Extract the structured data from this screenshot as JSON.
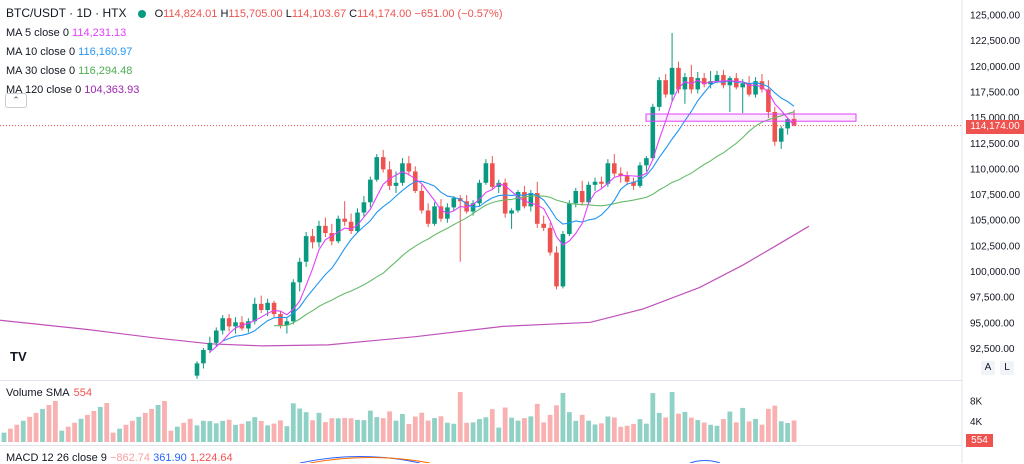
{
  "legend": {
    "symbol": "BTC/USDT · 1D · HTX",
    "o_label": "O",
    "o_value": "114,824.01",
    "h_label": "H",
    "h_value": "115,705.00",
    "l_label": "L",
    "l_value": "114,103.67",
    "c_label": "C",
    "c_value": "114,174.00",
    "change": "−651.00 (−0.57%)",
    "ma": [
      {
        "label": "MA 5 close 0",
        "value": "114,231.13",
        "color": "#e040fb"
      },
      {
        "label": "MA 10 close 0",
        "value": "116,160.97",
        "color": "#2196f3"
      },
      {
        "label": "MA 30 close 0",
        "value": "116,294.48",
        "color": "#4caf50"
      },
      {
        "label": "MA 120 close 0",
        "value": "104,363.93",
        "color": "#9c27b0"
      }
    ]
  },
  "collapse_icon": "chevron-up-icon",
  "logo_text": "TV",
  "axis_buttons": {
    "auto": "A",
    "log": "L"
  },
  "volume": {
    "label": "Volume SMA",
    "value": "554",
    "axis_ticks": [
      "8K",
      "4K"
    ],
    "last_tag": "554"
  },
  "macd": {
    "label": "MACD 12 26 close 9",
    "v1": "−862.74",
    "v2": "361.90",
    "v3": "1,224.64"
  },
  "last_price_tag": "114,174.00",
  "colors": {
    "up": "#089981",
    "down": "#ef5350",
    "ma5": "#e040fb",
    "ma10": "#2196f3",
    "ma30": "#66bb6a",
    "ma120": "#c252b9",
    "zone": "#e040fb"
  },
  "chart_data": {
    "type": "candlestick",
    "y_ticks": [
      "125,000.00",
      "122,500.00",
      "120,000.00",
      "117,500.00",
      "115,000.00",
      "112,500.00",
      "110,000.00",
      "107,500.00",
      "105,000.00",
      "102,500.00",
      "100,000.00",
      "97,500.00",
      "95,000.00",
      "92,500.00"
    ],
    "ylim": [
      90000,
      126000
    ],
    "candles": [
      [
        89800,
        91200,
        89500,
        91000
      ],
      [
        91000,
        92500,
        90500,
        92300
      ],
      [
        92300,
        93600,
        92000,
        93000
      ],
      [
        93000,
        94500,
        92600,
        94200
      ],
      [
        94200,
        95700,
        93800,
        95400
      ],
      [
        95400,
        95800,
        94100,
        94600
      ],
      [
        94600,
        95500,
        93900,
        95000
      ],
      [
        95000,
        95600,
        94200,
        94400
      ],
      [
        94400,
        95400,
        94000,
        95100
      ],
      [
        95100,
        97400,
        94800,
        96800
      ],
      [
        96800,
        97600,
        95900,
        96200
      ],
      [
        96200,
        97300,
        95600,
        96900
      ],
      [
        96900,
        97100,
        95500,
        95800
      ],
      [
        95800,
        96100,
        94400,
        94700
      ],
      [
        94700,
        95400,
        93900,
        95100
      ],
      [
        95100,
        99200,
        94800,
        98900
      ],
      [
        98900,
        101300,
        98000,
        100900
      ],
      [
        100900,
        103800,
        100400,
        103400
      ],
      [
        103400,
        104100,
        102200,
        102800
      ],
      [
        102800,
        104900,
        102300,
        104400
      ],
      [
        104400,
        105200,
        103300,
        103700
      ],
      [
        103700,
        104600,
        102500,
        102900
      ],
      [
        102900,
        105400,
        102700,
        105100
      ],
      [
        105100,
        106800,
        104400,
        104800
      ],
      [
        104800,
        105600,
        103600,
        103900
      ],
      [
        103900,
        106100,
        103700,
        105700
      ],
      [
        105700,
        107300,
        105300,
        106700
      ],
      [
        106700,
        109200,
        106200,
        108900
      ],
      [
        108900,
        111400,
        108700,
        111100
      ],
      [
        111100,
        111800,
        109600,
        109900
      ],
      [
        109900,
        110700,
        107900,
        108300
      ],
      [
        108300,
        109700,
        107600,
        108600
      ],
      [
        108600,
        111000,
        108300,
        110500
      ],
      [
        110500,
        111200,
        109300,
        109700
      ],
      [
        109700,
        110200,
        107600,
        107800
      ],
      [
        107800,
        108400,
        105600,
        105900
      ],
      [
        105900,
        106600,
        104300,
        104600
      ],
      [
        104600,
        106700,
        104400,
        106300
      ],
      [
        106300,
        107000,
        104800,
        105100
      ],
      [
        105100,
        106600,
        104700,
        106200
      ],
      [
        106200,
        107300,
        105900,
        107100
      ],
      [
        107100,
        107400,
        100900,
        106800
      ],
      [
        106800,
        107400,
        105600,
        105800
      ],
      [
        105800,
        106900,
        105400,
        106600
      ],
      [
        106600,
        108900,
        106300,
        108600
      ],
      [
        108600,
        110900,
        108400,
        110500
      ],
      [
        110500,
        111200,
        107900,
        108200
      ],
      [
        108200,
        108900,
        107600,
        108600
      ],
      [
        108600,
        109000,
        105200,
        105600
      ],
      [
        105600,
        106100,
        104100,
        105900
      ],
      [
        105900,
        107900,
        105700,
        107700
      ],
      [
        107700,
        108300,
        106100,
        106300
      ],
      [
        106300,
        107900,
        105800,
        107600
      ],
      [
        107600,
        108700,
        104200,
        104600
      ],
      [
        104600,
        105400,
        103900,
        104200
      ],
      [
        104200,
        104700,
        101500,
        101800
      ],
      [
        101800,
        102400,
        98200,
        98500
      ],
      [
        98500,
        103900,
        98300,
        103600
      ],
      [
        103600,
        106900,
        103400,
        106600
      ],
      [
        106600,
        108100,
        106200,
        107800
      ],
      [
        107800,
        108800,
        106400,
        106700
      ],
      [
        106700,
        108700,
        106500,
        108400
      ],
      [
        108400,
        109100,
        107800,
        108700
      ],
      [
        108700,
        109200,
        108100,
        108500
      ],
      [
        108500,
        110900,
        108200,
        110500
      ],
      [
        110500,
        111400,
        109200,
        109500
      ],
      [
        109500,
        110100,
        108600,
        109300
      ],
      [
        109300,
        109700,
        108400,
        108700
      ],
      [
        108700,
        109100,
        107900,
        108300
      ],
      [
        108300,
        110600,
        108100,
        110300
      ],
      [
        110300,
        111200,
        109700,
        111000
      ],
      [
        111000,
        116300,
        110800,
        116000
      ],
      [
        116000,
        118900,
        115600,
        118600
      ],
      [
        118600,
        119200,
        116900,
        117200
      ],
      [
        117200,
        123200,
        116500,
        119800
      ],
      [
        119800,
        120400,
        117300,
        117700
      ],
      [
        117700,
        119300,
        116300,
        118900
      ],
      [
        118900,
        120100,
        117300,
        117700
      ],
      [
        117700,
        119400,
        117300,
        118800
      ],
      [
        118800,
        119300,
        117900,
        118200
      ],
      [
        118200,
        119500,
        117800,
        118500
      ],
      [
        118500,
        119500,
        118300,
        119100
      ],
      [
        119100,
        119600,
        117800,
        118100
      ],
      [
        118100,
        119000,
        115500,
        118800
      ],
      [
        118800,
        119300,
        117700,
        117900
      ],
      [
        117900,
        118700,
        115400,
        118300
      ],
      [
        118300,
        119000,
        117000,
        117200
      ],
      [
        117200,
        118900,
        116900,
        118500
      ],
      [
        118500,
        119200,
        117400,
        117700
      ],
      [
        117700,
        118600,
        114900,
        115500
      ],
      [
        115500,
        116000,
        112200,
        112600
      ],
      [
        112600,
        114100,
        111900,
        113900
      ],
      [
        113900,
        114900,
        113300,
        114800
      ],
      [
        114824.01,
        115705,
        114103.67,
        114174
      ]
    ],
    "ma120_anchors": [
      [
        0,
        95200
      ],
      [
        20,
        94300
      ],
      [
        35,
        93500
      ],
      [
        48,
        92900
      ],
      [
        60,
        92700
      ],
      [
        75,
        92800
      ],
      [
        95,
        93600
      ],
      [
        115,
        94600
      ],
      [
        135,
        95000
      ],
      [
        147,
        96300
      ],
      [
        160,
        98400
      ],
      [
        170,
        100600
      ],
      [
        178,
        102600
      ],
      [
        185,
        104364
      ]
    ],
    "zone_box": {
      "low": 114600,
      "high": 115300,
      "from": "Jul-24",
      "to": "Aug-06"
    },
    "last_price": 114174,
    "volume": {
      "ticks": [
        8000,
        4000
      ],
      "max": 10000
    }
  }
}
